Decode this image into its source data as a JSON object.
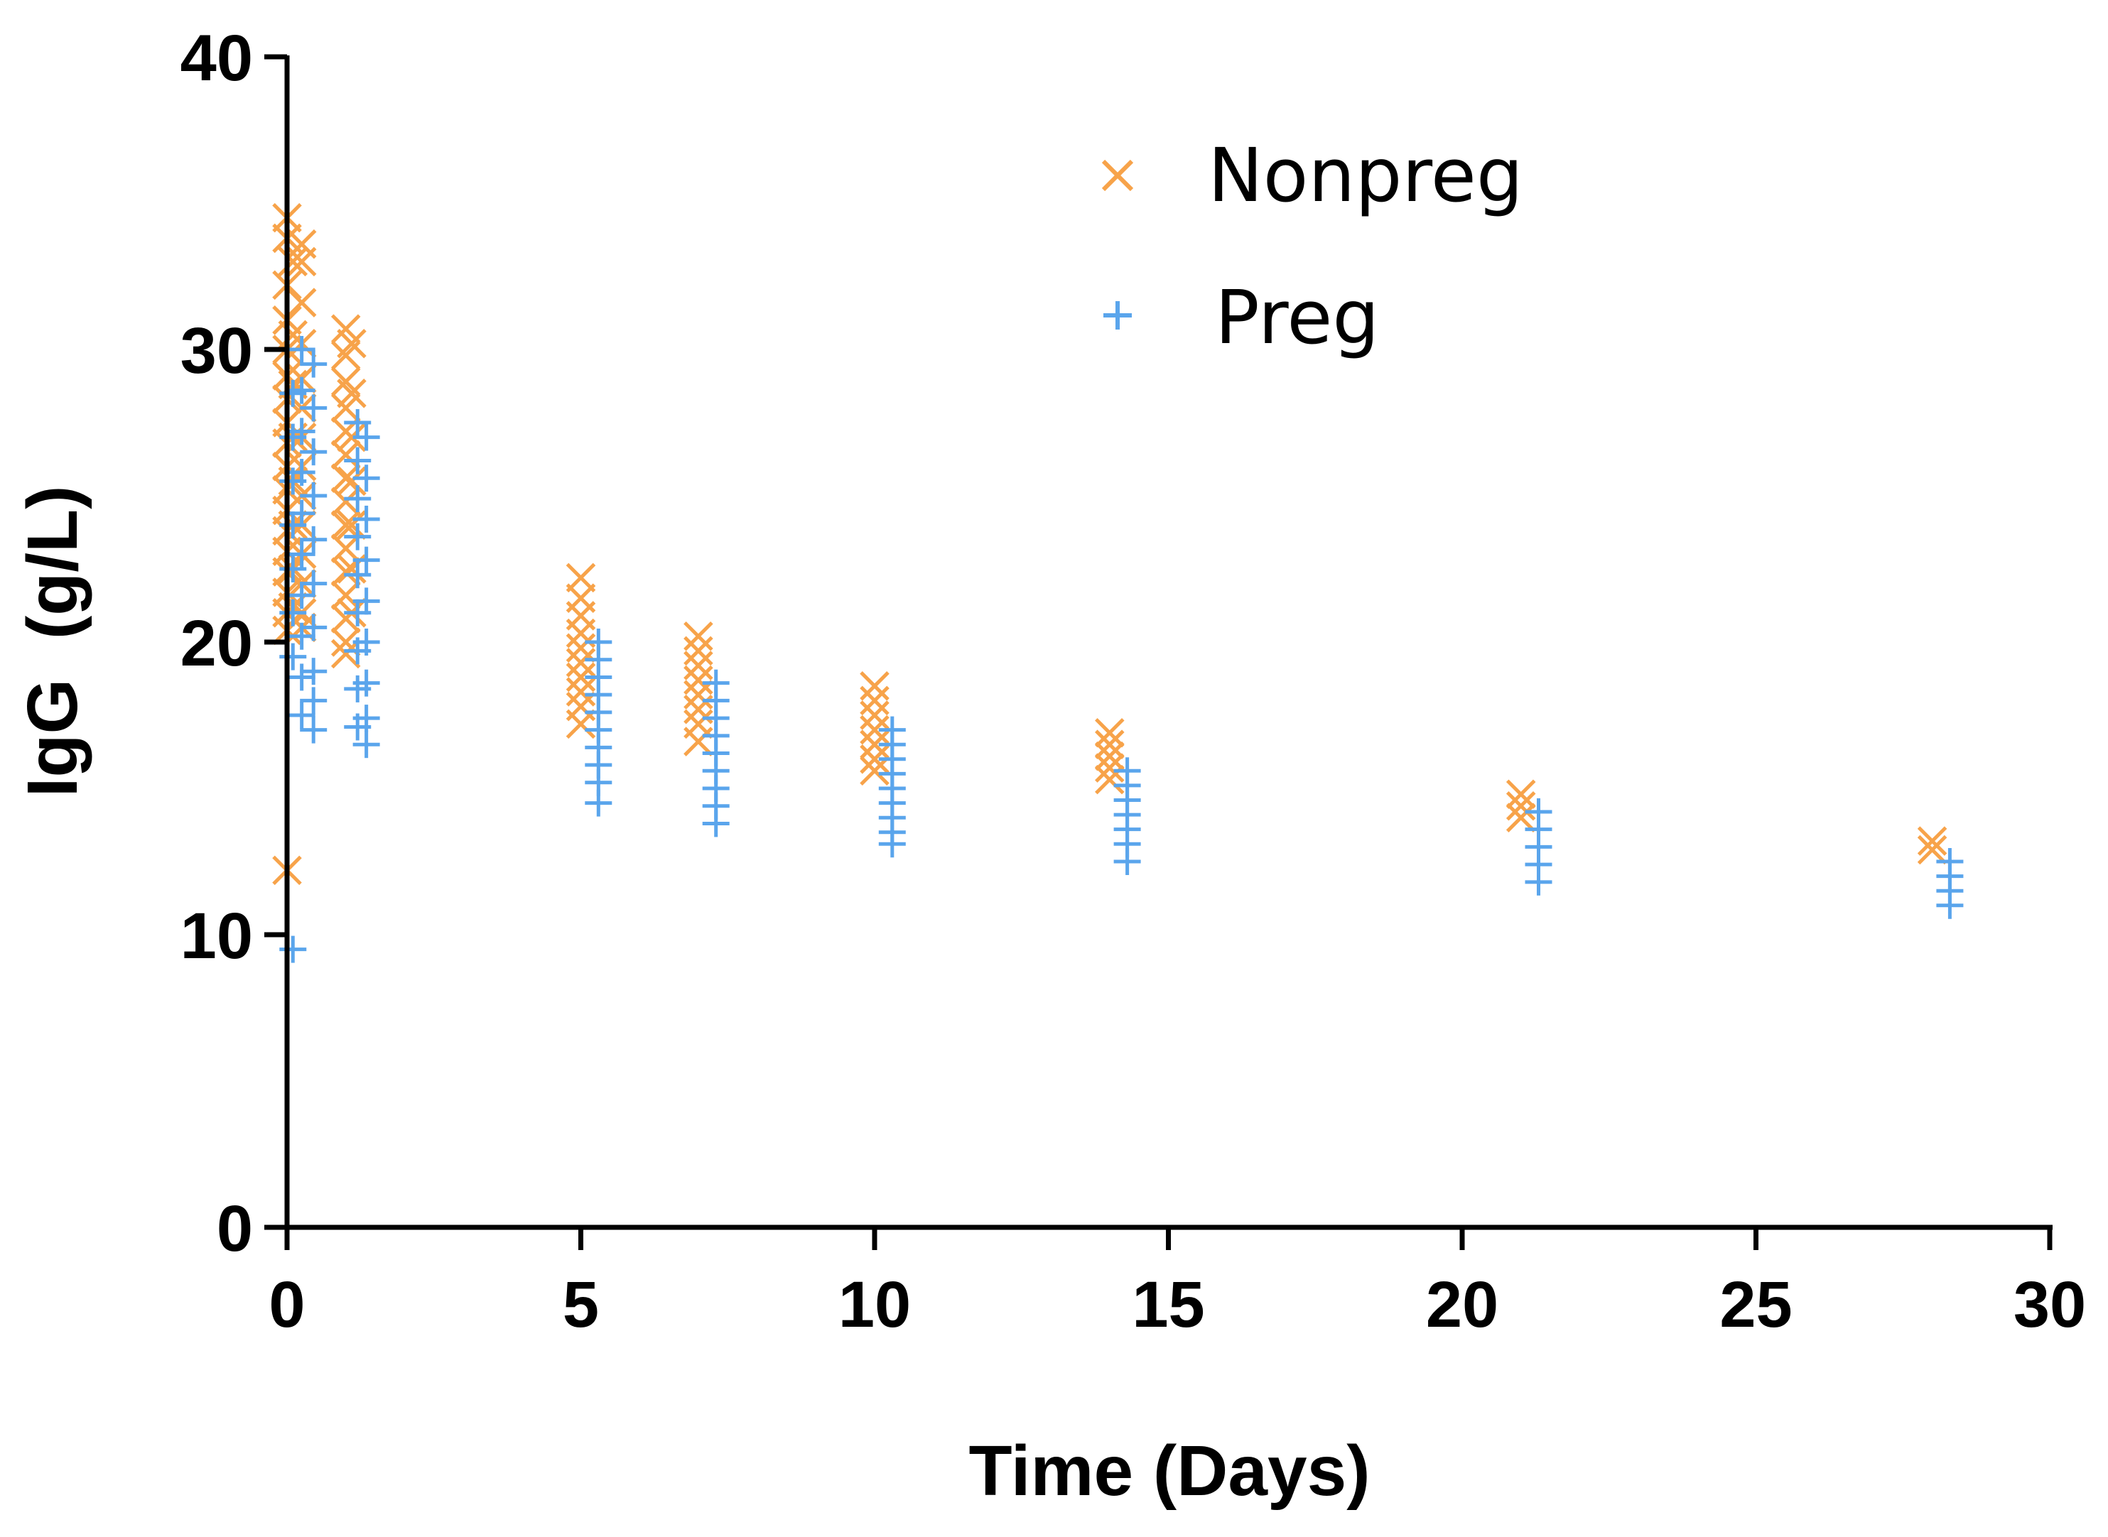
{
  "chart_data": {
    "type": "scatter",
    "title": "",
    "xlabel": "Time (Days)",
    "ylabel": "IgG  (g/L)",
    "xlim": [
      0,
      30
    ],
    "ylim": [
      0,
      40
    ],
    "xticks": [
      0,
      5,
      10,
      15,
      20,
      25,
      30
    ],
    "yticks": [
      0,
      10,
      20,
      30,
      40
    ],
    "grid": false,
    "legend_position": "top-right",
    "series": [
      {
        "name": "Nonpreg",
        "marker": "x",
        "color": "#F7A34A",
        "points": [
          [
            0.0,
            34.5
          ],
          [
            0.0,
            33.8
          ],
          [
            0.0,
            32.2
          ],
          [
            0.0,
            31.0
          ],
          [
            0.0,
            30.0
          ],
          [
            0.0,
            29.1
          ],
          [
            0.0,
            28.3
          ],
          [
            0.0,
            27.5
          ],
          [
            0.0,
            26.8
          ],
          [
            0.0,
            26.0
          ],
          [
            0.0,
            25.2
          ],
          [
            0.0,
            24.5
          ],
          [
            0.0,
            23.8
          ],
          [
            0.0,
            23.1
          ],
          [
            0.0,
            22.4
          ],
          [
            0.0,
            21.7
          ],
          [
            0.0,
            21.0
          ],
          [
            0.0,
            20.4
          ],
          [
            0.0,
            12.2
          ],
          [
            0.1,
            33.0
          ],
          [
            0.1,
            30.5
          ],
          [
            0.1,
            28.8
          ],
          [
            0.1,
            27.0
          ],
          [
            0.1,
            25.5
          ],
          [
            0.1,
            24.0
          ],
          [
            0.1,
            22.5
          ],
          [
            0.1,
            21.2
          ],
          [
            0.25,
            33.6
          ],
          [
            0.25,
            33.0
          ],
          [
            0.25,
            31.6
          ],
          [
            0.25,
            30.2
          ],
          [
            0.25,
            29.0
          ],
          [
            0.25,
            28.0
          ],
          [
            0.25,
            27.0
          ],
          [
            0.25,
            26.0
          ],
          [
            0.25,
            25.0
          ],
          [
            0.25,
            24.0
          ],
          [
            0.25,
            23.0
          ],
          [
            0.25,
            22.0
          ],
          [
            0.25,
            21.0
          ],
          [
            0.25,
            20.5
          ],
          [
            1.0,
            30.7
          ],
          [
            1.0,
            29.8
          ],
          [
            1.0,
            28.9
          ],
          [
            1.0,
            28.0
          ],
          [
            1.0,
            27.2
          ],
          [
            1.0,
            26.4
          ],
          [
            1.0,
            25.6
          ],
          [
            1.0,
            24.8
          ],
          [
            1.0,
            24.0
          ],
          [
            1.0,
            23.2
          ],
          [
            1.0,
            22.4
          ],
          [
            1.0,
            21.6
          ],
          [
            1.0,
            20.8
          ],
          [
            1.0,
            20.0
          ],
          [
            1.0,
            19.6
          ],
          [
            1.1,
            30.2
          ],
          [
            1.1,
            28.5
          ],
          [
            1.1,
            27.0
          ],
          [
            1.1,
            25.5
          ],
          [
            1.1,
            24.0
          ],
          [
            1.1,
            22.5
          ],
          [
            1.1,
            21.0
          ],
          [
            5.0,
            22.2
          ],
          [
            5.0,
            21.5
          ],
          [
            5.0,
            20.9
          ],
          [
            5.0,
            20.3
          ],
          [
            5.0,
            19.8
          ],
          [
            5.0,
            19.3
          ],
          [
            5.0,
            18.8
          ],
          [
            5.0,
            18.3
          ],
          [
            5.0,
            17.8
          ],
          [
            5.0,
            17.2
          ],
          [
            7.0,
            20.2
          ],
          [
            7.0,
            19.7
          ],
          [
            7.0,
            19.2
          ],
          [
            7.0,
            18.7
          ],
          [
            7.0,
            18.2
          ],
          [
            7.0,
            17.7
          ],
          [
            7.0,
            17.2
          ],
          [
            7.0,
            16.6
          ],
          [
            10.0,
            18.5
          ],
          [
            10.0,
            18.0
          ],
          [
            10.0,
            17.5
          ],
          [
            10.0,
            17.0
          ],
          [
            10.0,
            16.5
          ],
          [
            10.0,
            16.0
          ],
          [
            10.0,
            15.6
          ],
          [
            14.0,
            16.9
          ],
          [
            14.0,
            16.5
          ],
          [
            14.0,
            16.1
          ],
          [
            14.0,
            15.7
          ],
          [
            14.0,
            15.3
          ],
          [
            21.0,
            14.8
          ],
          [
            21.0,
            14.4
          ],
          [
            21.0,
            14.0
          ],
          [
            28.0,
            13.2
          ],
          [
            28.0,
            12.9
          ]
        ]
      },
      {
        "name": "Preg",
        "marker": "+",
        "color": "#5AA5EC",
        "points": [
          [
            0.1,
            9.5
          ],
          [
            0.1,
            19.5
          ],
          [
            0.1,
            21.0
          ],
          [
            0.1,
            22.5
          ],
          [
            0.1,
            24.0
          ],
          [
            0.1,
            25.5
          ],
          [
            0.1,
            27.0
          ],
          [
            0.1,
            28.5
          ],
          [
            0.25,
            30.0
          ],
          [
            0.25,
            28.6
          ],
          [
            0.25,
            27.2
          ],
          [
            0.25,
            25.8
          ],
          [
            0.25,
            24.4
          ],
          [
            0.25,
            23.0
          ],
          [
            0.25,
            21.6
          ],
          [
            0.25,
            20.2
          ],
          [
            0.25,
            18.8
          ],
          [
            0.25,
            17.5
          ],
          [
            0.45,
            29.5
          ],
          [
            0.45,
            28.0
          ],
          [
            0.45,
            26.5
          ],
          [
            0.45,
            25.0
          ],
          [
            0.45,
            23.5
          ],
          [
            0.45,
            22.0
          ],
          [
            0.45,
            20.5
          ],
          [
            0.45,
            19.0
          ],
          [
            0.45,
            18.0
          ],
          [
            0.45,
            17.0
          ],
          [
            1.2,
            27.5
          ],
          [
            1.2,
            26.2
          ],
          [
            1.2,
            24.9
          ],
          [
            1.2,
            23.6
          ],
          [
            1.2,
            22.3
          ],
          [
            1.2,
            21.0
          ],
          [
            1.2,
            19.7
          ],
          [
            1.2,
            18.4
          ],
          [
            1.2,
            17.1
          ],
          [
            1.35,
            27.0
          ],
          [
            1.35,
            25.6
          ],
          [
            1.35,
            24.2
          ],
          [
            1.35,
            22.8
          ],
          [
            1.35,
            21.4
          ],
          [
            1.35,
            20.0
          ],
          [
            1.35,
            18.6
          ],
          [
            1.35,
            17.4
          ],
          [
            1.35,
            16.5
          ],
          [
            5.3,
            20.0
          ],
          [
            5.3,
            19.4
          ],
          [
            5.3,
            18.8
          ],
          [
            5.3,
            18.2
          ],
          [
            5.3,
            17.6
          ],
          [
            5.3,
            17.0
          ],
          [
            5.3,
            16.4
          ],
          [
            5.3,
            15.8
          ],
          [
            5.3,
            15.2
          ],
          [
            5.3,
            14.5
          ],
          [
            7.3,
            18.6
          ],
          [
            7.3,
            18.0
          ],
          [
            7.3,
            17.4
          ],
          [
            7.3,
            16.8
          ],
          [
            7.3,
            16.2
          ],
          [
            7.3,
            15.6
          ],
          [
            7.3,
            15.0
          ],
          [
            7.3,
            14.4
          ],
          [
            7.3,
            13.8
          ],
          [
            10.3,
            17.0
          ],
          [
            10.3,
            16.5
          ],
          [
            10.3,
            16.0
          ],
          [
            10.3,
            15.5
          ],
          [
            10.3,
            15.0
          ],
          [
            10.3,
            14.5
          ],
          [
            10.3,
            14.0
          ],
          [
            10.3,
            13.5
          ],
          [
            10.3,
            13.1
          ],
          [
            14.3,
            15.6
          ],
          [
            14.3,
            15.1
          ],
          [
            14.3,
            14.6
          ],
          [
            14.3,
            14.1
          ],
          [
            14.3,
            13.6
          ],
          [
            14.3,
            13.1
          ],
          [
            14.3,
            12.5
          ],
          [
            21.3,
            14.2
          ],
          [
            21.3,
            13.6
          ],
          [
            21.3,
            13.0
          ],
          [
            21.3,
            12.4
          ],
          [
            21.3,
            11.8
          ],
          [
            28.3,
            12.5
          ],
          [
            28.3,
            12.0
          ],
          [
            28.3,
            11.5
          ],
          [
            28.3,
            11.0
          ]
        ]
      }
    ]
  },
  "legend": {
    "items": [
      {
        "label": "Nonpreg",
        "icon": "x-marker-icon"
      },
      {
        "label": "Preg",
        "icon": "plus-marker-icon"
      }
    ]
  }
}
